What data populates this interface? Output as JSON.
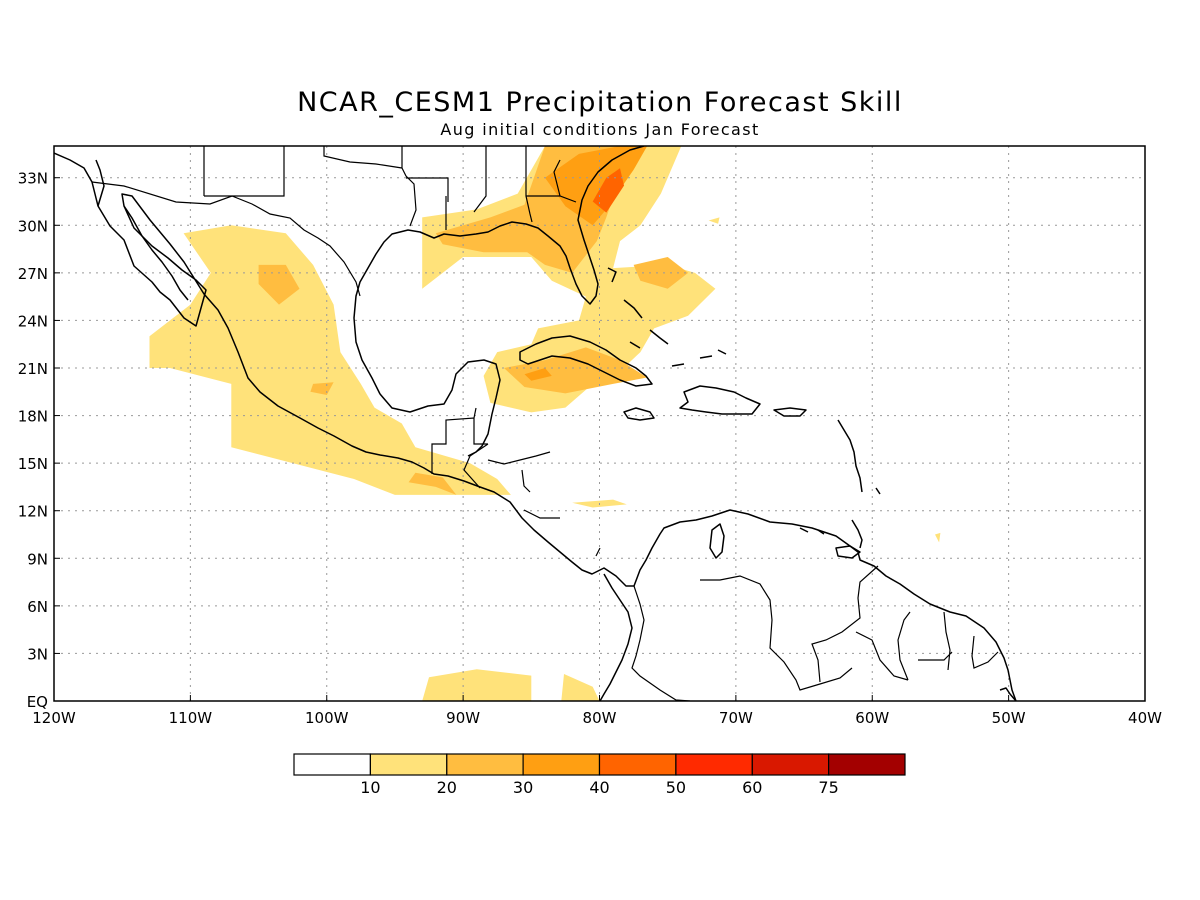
{
  "title": "NCAR_CESM1 Precipitation Forecast Skill",
  "subtitle": "Aug initial conditions  Jan Forecast",
  "chart_data": {
    "type": "heatmap",
    "title": "NCAR_CESM1 Precipitation Forecast Skill",
    "subtitle": "Aug initial conditions  Jan Forecast",
    "lon_range": [
      -120,
      -40
    ],
    "lat_range": [
      0,
      35
    ],
    "x_ticks": [
      "120W",
      "110W",
      "100W",
      "90W",
      "80W",
      "70W",
      "60W",
      "50W",
      "40W"
    ],
    "x_tick_values": [
      -120,
      -110,
      -100,
      -90,
      -80,
      -70,
      -60,
      -50,
      -40
    ],
    "y_ticks": [
      "EQ",
      "3N",
      "6N",
      "9N",
      "12N",
      "15N",
      "18N",
      "21N",
      "24N",
      "27N",
      "30N",
      "33N"
    ],
    "y_tick_values": [
      0,
      3,
      6,
      9,
      12,
      15,
      18,
      21,
      24,
      27,
      30,
      33
    ],
    "grid": true,
    "colorbar": {
      "levels": [
        "10",
        "20",
        "30",
        "40",
        "50",
        "60",
        "75"
      ],
      "colors": [
        "#ffffff",
        "#ffe27a",
        "#ffbd40",
        "#ff9f12",
        "#ff6400",
        "#ff2a00",
        "#d91800",
        "#a30000"
      ]
    },
    "regions": [
      {
        "level": 1,
        "polygon": [
          [
            -110.5,
            29.5
          ],
          [
            -107,
            30
          ],
          [
            -103,
            29.5
          ],
          [
            -101,
            27.5
          ],
          [
            -99.5,
            25
          ],
          [
            -99,
            22
          ],
          [
            -97.5,
            20
          ],
          [
            -96.5,
            18.5
          ],
          [
            -94.5,
            17.5
          ],
          [
            -93.5,
            16
          ],
          [
            -89.5,
            15
          ],
          [
            -87.5,
            14
          ],
          [
            -86.5,
            13
          ],
          [
            -90,
            13
          ],
          [
            -95,
            13
          ],
          [
            -98,
            14
          ],
          [
            -102.5,
            15
          ],
          [
            -107,
            16
          ],
          [
            -107,
            20
          ],
          [
            -111.5,
            21
          ],
          [
            -113,
            21
          ],
          [
            -113,
            23
          ],
          [
            -110,
            25
          ],
          [
            -108.5,
            27
          ],
          [
            -110.5,
            29.5
          ]
        ]
      },
      {
        "level": 2,
        "polygon": [
          [
            -105,
            27.5
          ],
          [
            -103,
            27.5
          ],
          [
            -102,
            26
          ],
          [
            -103.5,
            25
          ],
          [
            -105,
            26.3
          ]
        ]
      },
      {
        "level": 2,
        "polygon": [
          [
            -101,
            20
          ],
          [
            -99.5,
            20.1
          ],
          [
            -100,
            19.3
          ],
          [
            -101.2,
            19.5
          ]
        ]
      },
      {
        "level": 2,
        "polygon": [
          [
            -94,
            13.8
          ],
          [
            -92,
            13.5
          ],
          [
            -90.5,
            13
          ],
          [
            -91.5,
            14.1
          ],
          [
            -93.5,
            14.4
          ]
        ]
      },
      {
        "level": 1,
        "polygon": [
          [
            -93,
            30.5
          ],
          [
            -89,
            31
          ],
          [
            -86,
            32
          ],
          [
            -84,
            35
          ],
          [
            -74,
            35
          ],
          [
            -75.5,
            32
          ],
          [
            -77,
            30
          ],
          [
            -78.5,
            29
          ],
          [
            -79,
            27.3
          ],
          [
            -75,
            27.5
          ],
          [
            -73,
            27
          ],
          [
            -71.5,
            26
          ],
          [
            -73.5,
            24.3
          ],
          [
            -76,
            23.5
          ],
          [
            -77,
            22
          ],
          [
            -78.5,
            20.8
          ],
          [
            -80.5,
            20
          ],
          [
            -82.5,
            18.5
          ],
          [
            -85,
            18.2
          ],
          [
            -88,
            18.8
          ],
          [
            -88.5,
            20.5
          ],
          [
            -87.5,
            22
          ],
          [
            -85,
            22.5
          ],
          [
            -84.5,
            23.5
          ],
          [
            -81.5,
            24
          ],
          [
            -81,
            25.5
          ],
          [
            -83.5,
            26.5
          ],
          [
            -85,
            28
          ],
          [
            -90,
            28
          ],
          [
            -93,
            26
          ],
          [
            -93,
            30.5
          ]
        ]
      },
      {
        "level": 2,
        "polygon": [
          [
            -92,
            29.5
          ],
          [
            -88,
            30.5
          ],
          [
            -85.5,
            31.3
          ],
          [
            -84,
            35
          ],
          [
            -77,
            35
          ],
          [
            -78.5,
            33
          ],
          [
            -79.5,
            30.5
          ],
          [
            -80.2,
            29
          ],
          [
            -82,
            27
          ],
          [
            -84,
            27.5
          ],
          [
            -85.3,
            28.3
          ],
          [
            -88.5,
            28.3
          ],
          [
            -91.5,
            28.8
          ]
        ]
      },
      {
        "level": 2,
        "polygon": [
          [
            -87,
            21
          ],
          [
            -84,
            21.5
          ],
          [
            -81,
            22.3
          ],
          [
            -78.5,
            21.5
          ],
          [
            -76.5,
            20.4
          ],
          [
            -79,
            20
          ],
          [
            -82.5,
            19.4
          ],
          [
            -85.5,
            19.8
          ]
        ]
      },
      {
        "level": 2,
        "polygon": [
          [
            -77.5,
            27.5
          ],
          [
            -75,
            28
          ],
          [
            -73.5,
            27
          ],
          [
            -75,
            26
          ],
          [
            -77,
            26.5
          ]
        ]
      },
      {
        "level": 3,
        "polygon": [
          [
            -84,
            33
          ],
          [
            -81.5,
            34.5
          ],
          [
            -78.5,
            35
          ],
          [
            -76.5,
            35
          ],
          [
            -77.5,
            33.5
          ],
          [
            -79.5,
            31
          ],
          [
            -80.5,
            30
          ],
          [
            -82.5,
            31.2
          ]
        ]
      },
      {
        "level": 4,
        "polygon": [
          [
            -80.5,
            31.5
          ],
          [
            -79.5,
            33
          ],
          [
            -78.5,
            33.6
          ],
          [
            -78.2,
            32.5
          ],
          [
            -79.5,
            30.8
          ]
        ]
      },
      {
        "level": 3,
        "polygon": [
          [
            -85.5,
            20.6
          ],
          [
            -84,
            21
          ],
          [
            -83.5,
            20.5
          ],
          [
            -85,
            20.2
          ]
        ]
      },
      {
        "level": 1,
        "polygon": [
          [
            -93,
            0
          ],
          [
            -92.5,
            1.5
          ],
          [
            -89,
            2
          ],
          [
            -85,
            1.6
          ],
          [
            -85,
            0
          ]
        ]
      },
      {
        "level": 1,
        "polygon": [
          [
            -82.8,
            0
          ],
          [
            -82.6,
            1.7
          ],
          [
            -80.5,
            0.9
          ],
          [
            -80,
            0
          ]
        ]
      },
      {
        "level": 1,
        "polygon": [
          [
            -82,
            12.5
          ],
          [
            -79,
            12.7
          ],
          [
            -78,
            12.4
          ],
          [
            -80.5,
            12.2
          ]
        ]
      },
      {
        "level": 1,
        "polygon": [
          [
            -72,
            30.3
          ],
          [
            -71.2,
            30.5
          ],
          [
            -71.3,
            30.1
          ]
        ]
      },
      {
        "level": 1,
        "polygon": [
          [
            -55.4,
            10.5
          ],
          [
            -55,
            10.6
          ],
          [
            -55.1,
            10
          ]
        ]
      }
    ]
  }
}
